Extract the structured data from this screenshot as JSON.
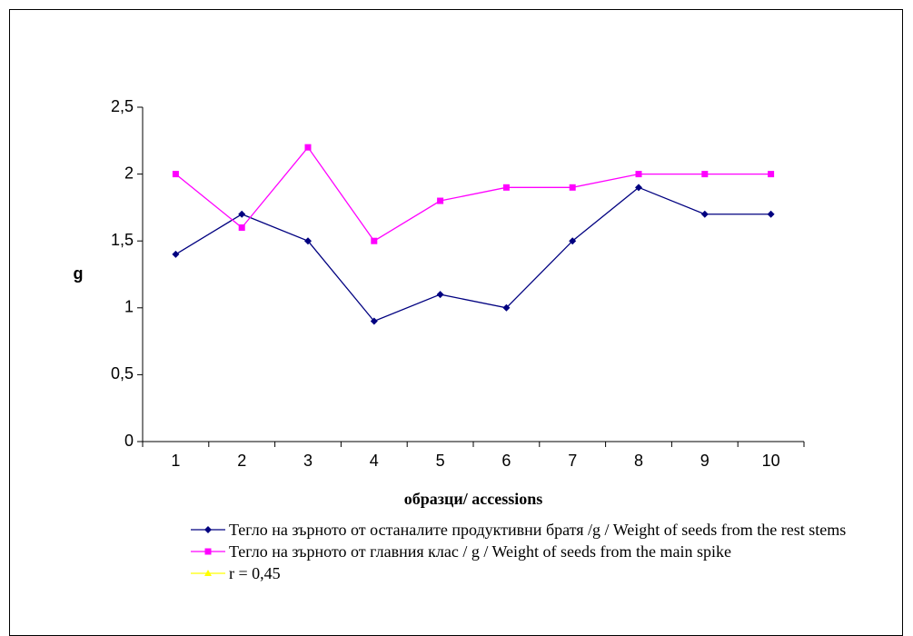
{
  "chart_data": {
    "type": "line",
    "x_label": "образци/ accessions",
    "y_label": "g",
    "categories": [
      "1",
      "2",
      "3",
      "4",
      "5",
      "6",
      "7",
      "8",
      "9",
      "10"
    ],
    "series": [
      {
        "name": "Тегло на зърното от останалите продуктивни братя /g / Weight of seeds from the rest stems",
        "color": "#000080",
        "marker": "diamond",
        "values": [
          1.4,
          1.7,
          1.5,
          0.9,
          1.1,
          1.0,
          1.5,
          1.9,
          1.7,
          1.7
        ]
      },
      {
        "name": "Тегло на зърното от главния клас / g / Weight of seeds from the main spike",
        "color": "#ff00ff",
        "marker": "square",
        "values": [
          2,
          1.6,
          2.2,
          1.5,
          1.8,
          1.9,
          1.9,
          2,
          2,
          2
        ]
      },
      {
        "name": "r = 0,45",
        "color": "#ffff00",
        "marker": "triangle",
        "values": [
          null,
          null,
          null,
          null,
          null,
          null,
          null,
          null,
          null,
          null
        ]
      }
    ],
    "ylim": [
      0,
      2.5
    ],
    "yticks": [
      0,
      {
        "value": 0.5,
        "label": "0,5"
      },
      1,
      {
        "value": 1.5,
        "label": "1,5"
      },
      2,
      {
        "value": 2.5,
        "label": "2,5"
      }
    ],
    "grid": false
  }
}
